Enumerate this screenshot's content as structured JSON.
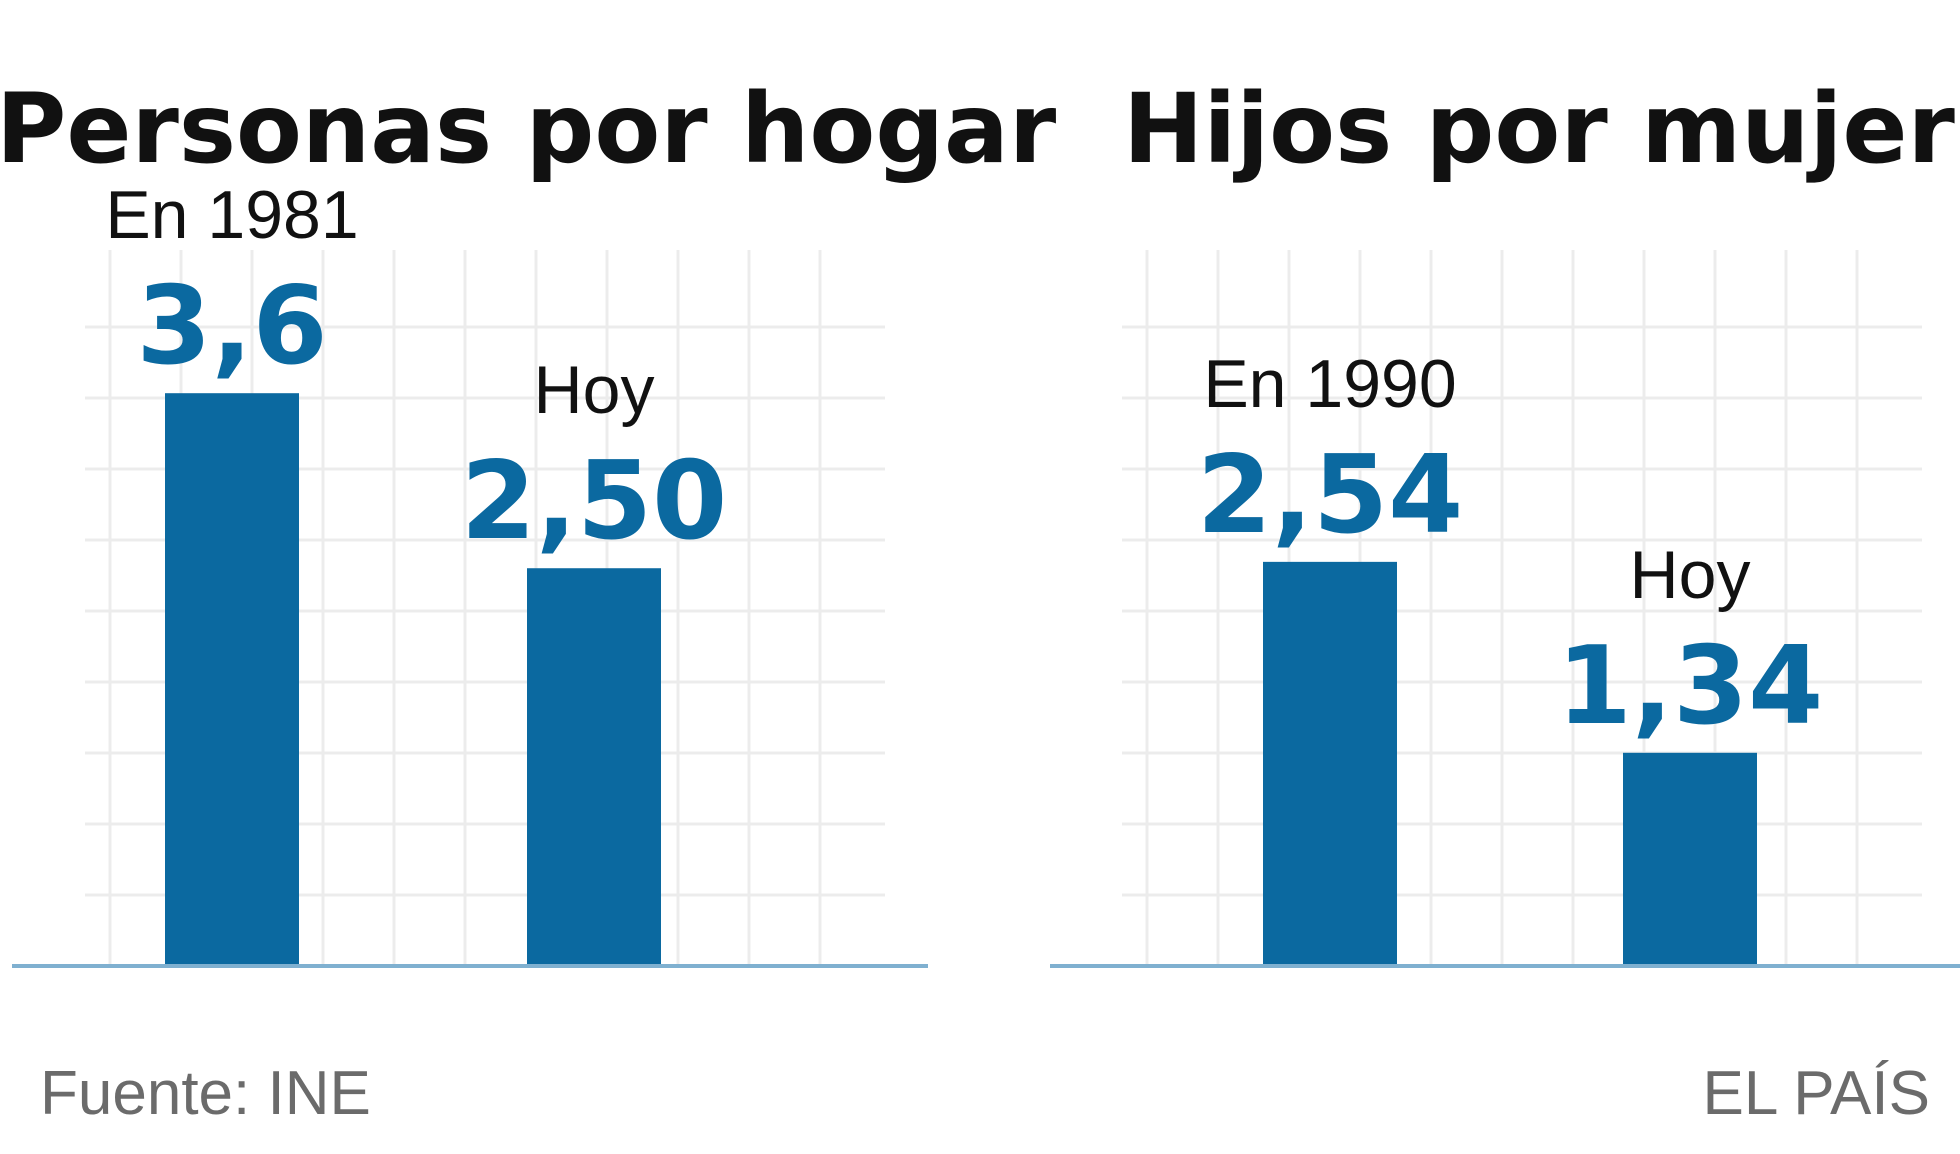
{
  "colors": {
    "bar": "#0b69a0",
    "value_text": "#0b69a0",
    "grid": "#ececec",
    "baseline": "#7fb0d0"
  },
  "chart_data": [
    {
      "type": "bar",
      "title": "Personas por hogar",
      "categories": [
        "En 1981",
        "Hoy"
      ],
      "values": [
        3.6,
        2.5
      ],
      "value_labels": [
        "3,6",
        "2,50"
      ],
      "ylim": [
        0,
        4.5
      ],
      "grid": true
    },
    {
      "type": "bar",
      "title": "Hijos por mujer",
      "categories": [
        "En 1990",
        "Hoy"
      ],
      "values": [
        2.54,
        1.34
      ],
      "value_labels": [
        "2,54",
        "1,34"
      ],
      "ylim": [
        0,
        4.5
      ],
      "grid": true
    }
  ],
  "footer": {
    "source": "Fuente: INE",
    "brand": "EL PAÍS"
  }
}
